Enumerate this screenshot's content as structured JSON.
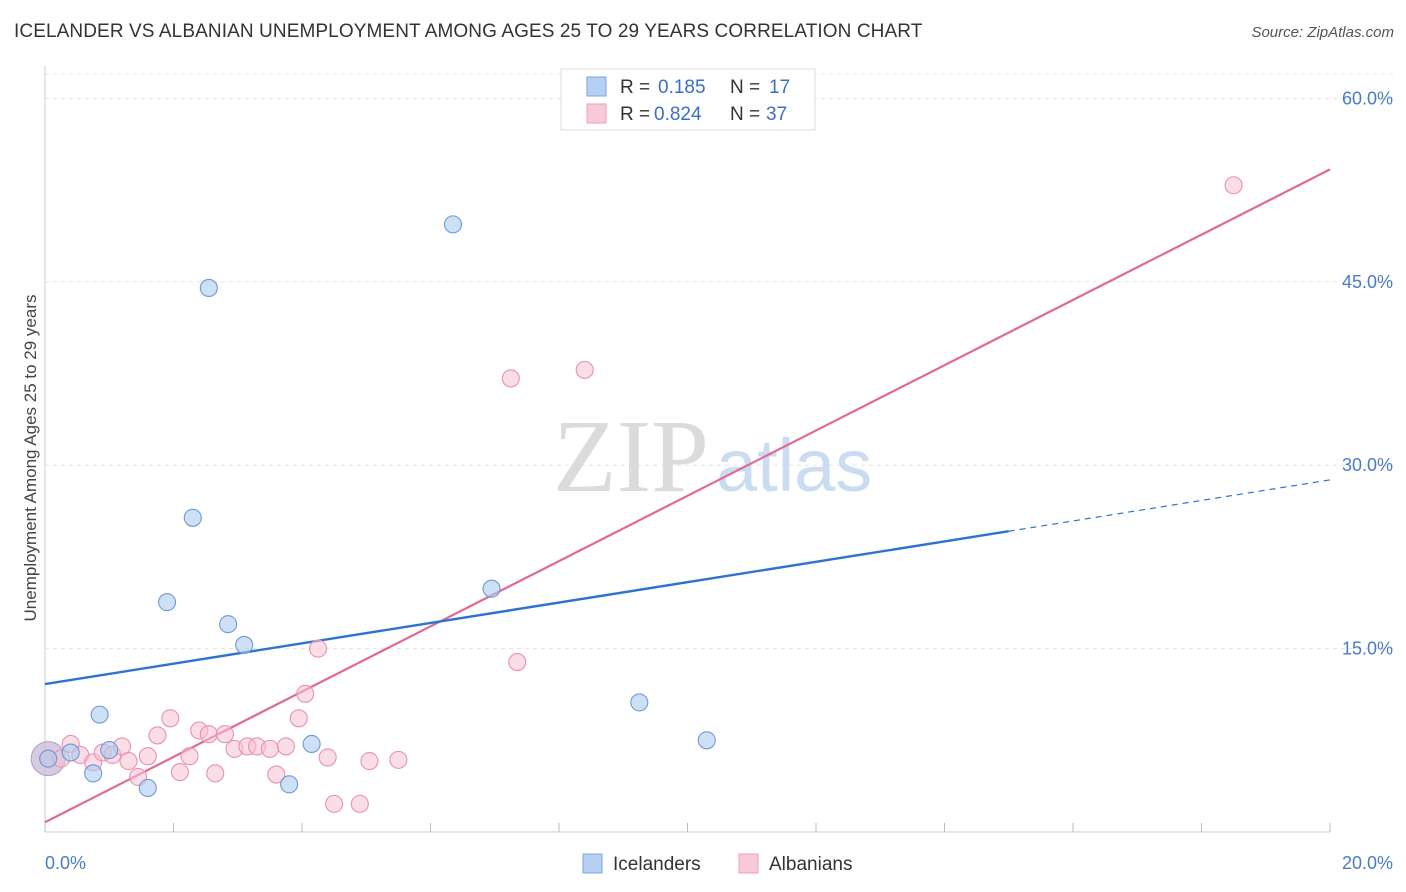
{
  "title": "ICELANDER VS ALBANIAN UNEMPLOYMENT AMONG AGES 25 TO 29 YEARS CORRELATION CHART",
  "source": "Source: ZipAtlas.com",
  "watermark": {
    "zip": "ZIP",
    "atlas": "atlas"
  },
  "colors": {
    "icelanders_fill": "#aecbf0",
    "icelanders_stroke": "#6c9ad8",
    "icelanders_line": "#2e72d2",
    "albanians_fill": "#f6c1d1",
    "albanians_stroke": "#e892ae",
    "albanians_line": "#e06a94",
    "tick_label": "#4a7cc4",
    "grid": "#e3e3e3"
  },
  "legend": {
    "r_label": "R =",
    "n_label": "N =",
    "items": [
      {
        "r": "0.185",
        "n": "17"
      },
      {
        "r": "0.824",
        "n": "37"
      }
    ]
  },
  "chart_data": {
    "type": "scatter",
    "title": "ICELANDER VS ALBANIAN UNEMPLOYMENT AMONG AGES 25 TO 29 YEARS CORRELATION CHART",
    "xlabel": "",
    "ylabel": "Unemployment Among Ages 25 to 29 years",
    "xlim": [
      0,
      20
    ],
    "ylim": [
      0,
      62
    ],
    "x_tick_labels": [
      "0.0%",
      "20.0%"
    ],
    "y_ticks": [
      15,
      30,
      45,
      60
    ],
    "y_tick_labels": [
      "15.0%",
      "30.0%",
      "45.0%",
      "60.0%"
    ],
    "grid": true,
    "legend_position": "top-center",
    "series": [
      {
        "name": "Icelanders",
        "r": 0.185,
        "n": 17,
        "points": [
          [
            0.05,
            6.0
          ],
          [
            0.4,
            6.5
          ],
          [
            0.75,
            4.8
          ],
          [
            0.85,
            9.6
          ],
          [
            1.0,
            6.7
          ],
          [
            1.6,
            3.6
          ],
          [
            1.9,
            18.8
          ],
          [
            2.3,
            25.7
          ],
          [
            2.55,
            44.5
          ],
          [
            2.85,
            17.0
          ],
          [
            3.1,
            15.3
          ],
          [
            3.8,
            3.9
          ],
          [
            4.15,
            7.2
          ],
          [
            6.35,
            49.7
          ],
          [
            6.95,
            19.9
          ],
          [
            9.25,
            10.6
          ],
          [
            10.3,
            7.5
          ]
        ],
        "trend": {
          "x0": 0,
          "y0": 12.1,
          "x1": 15.0,
          "y1": 24.6,
          "dashed_to_x": 20.0,
          "dashed_to_y": 28.8
        }
      },
      {
        "name": "Albanians",
        "points": [
          [
            0.05,
            6.0
          ],
          [
            0.25,
            6.0
          ],
          [
            0.4,
            7.2
          ],
          [
            0.55,
            6.3
          ],
          [
            0.75,
            5.7
          ],
          [
            0.9,
            6.5
          ],
          [
            1.05,
            6.3
          ],
          [
            1.2,
            7.0
          ],
          [
            1.3,
            5.8
          ],
          [
            1.45,
            4.5
          ],
          [
            1.6,
            6.2
          ],
          [
            1.75,
            7.9
          ],
          [
            1.95,
            9.3
          ],
          [
            2.1,
            4.9
          ],
          [
            2.25,
            6.2
          ],
          [
            2.4,
            8.3
          ],
          [
            2.55,
            8.0
          ],
          [
            2.65,
            4.8
          ],
          [
            2.8,
            8.0
          ],
          [
            2.95,
            6.8
          ],
          [
            3.15,
            7.0
          ],
          [
            3.3,
            7.0
          ],
          [
            3.5,
            6.8
          ],
          [
            3.6,
            4.7
          ],
          [
            3.75,
            7.0
          ],
          [
            4.05,
            11.3
          ],
          [
            3.95,
            9.3
          ],
          [
            4.25,
            15.0
          ],
          [
            4.4,
            6.1
          ],
          [
            4.5,
            2.3
          ],
          [
            4.9,
            2.3
          ],
          [
            5.05,
            5.8
          ],
          [
            5.5,
            5.9
          ],
          [
            7.25,
            37.1
          ],
          [
            7.35,
            13.9
          ],
          [
            8.4,
            37.8
          ],
          [
            18.5,
            52.9
          ]
        ],
        "r": 0.824,
        "n": 37,
        "trend": {
          "x0": 0,
          "y0": 0.8,
          "x1": 20.0,
          "y1": 54.2
        }
      }
    ]
  },
  "bottom_legend": {
    "items": [
      "Icelanders",
      "Albanians"
    ]
  }
}
